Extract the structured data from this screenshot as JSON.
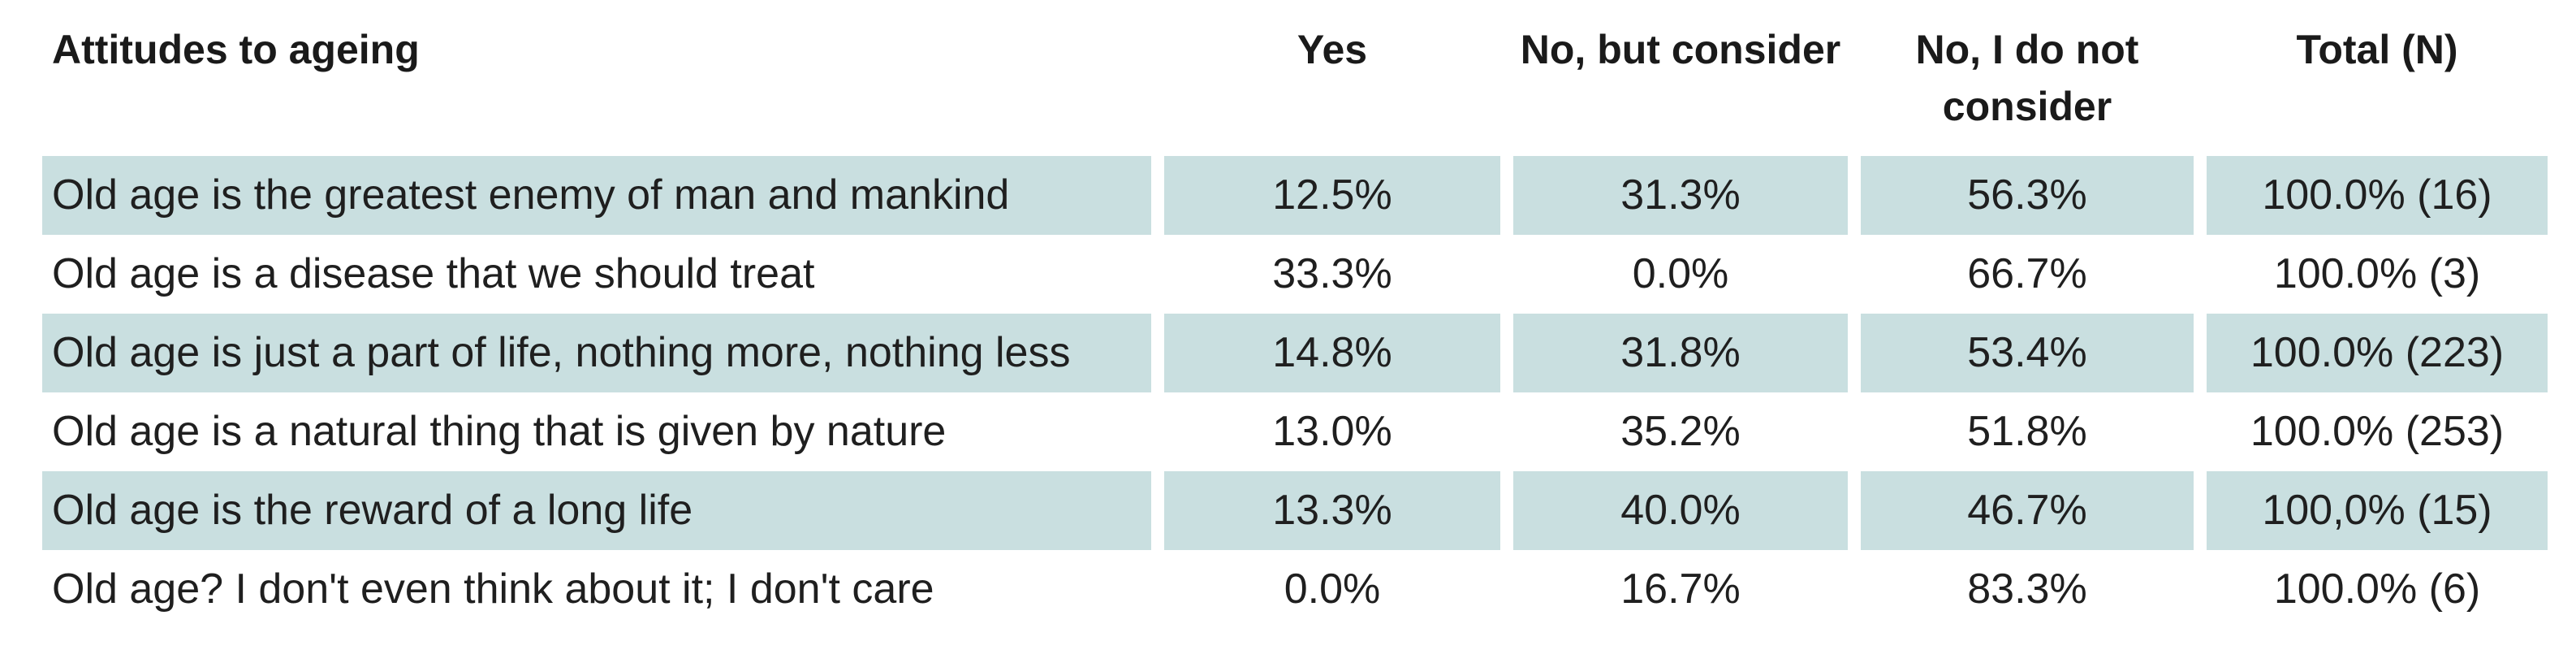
{
  "table": {
    "headers": {
      "attitude": "Attitudes to ageing",
      "yes": "Yes",
      "no_but_consider": "No, but consider",
      "no_not_consider": "No, I do not consider",
      "total": "Total (N)"
    },
    "rows": [
      {
        "attitude": "Old age is the greatest enemy of man and mankind",
        "yes": "12.5%",
        "no_but_consider": "31.3%",
        "no_not_consider": "56.3%",
        "total": "100.0% (16)"
      },
      {
        "attitude": "Old age is a disease that we should treat",
        "yes": "33.3%",
        "no_but_consider": "0.0%",
        "no_not_consider": "66.7%",
        "total": "100.0% (3)"
      },
      {
        "attitude": "Old age is just a part of life, nothing more, nothing less",
        "yes": "14.8%",
        "no_but_consider": "31.8%",
        "no_not_consider": "53.4%",
        "total": "100.0% (223)"
      },
      {
        "attitude": "Old age is a natural thing that is given by nature",
        "yes": "13.0%",
        "no_but_consider": "35.2%",
        "no_not_consider": "51.8%",
        "total": "100.0% (253)"
      },
      {
        "attitude": "Old age is the reward of a long life",
        "yes": "13.3%",
        "no_but_consider": "40.0%",
        "no_not_consider": "46.7%",
        "total": "100,0% (15)"
      },
      {
        "attitude": "Old age? I don't even think about it; I don't care",
        "yes": "0.0%",
        "no_but_consider": "16.7%",
        "no_not_consider": "83.3%",
        "total": "100.0% (6)"
      }
    ]
  },
  "colors": {
    "row_shading": "#c9dfe0",
    "text": "#1f1f1f",
    "background": "#ffffff"
  }
}
